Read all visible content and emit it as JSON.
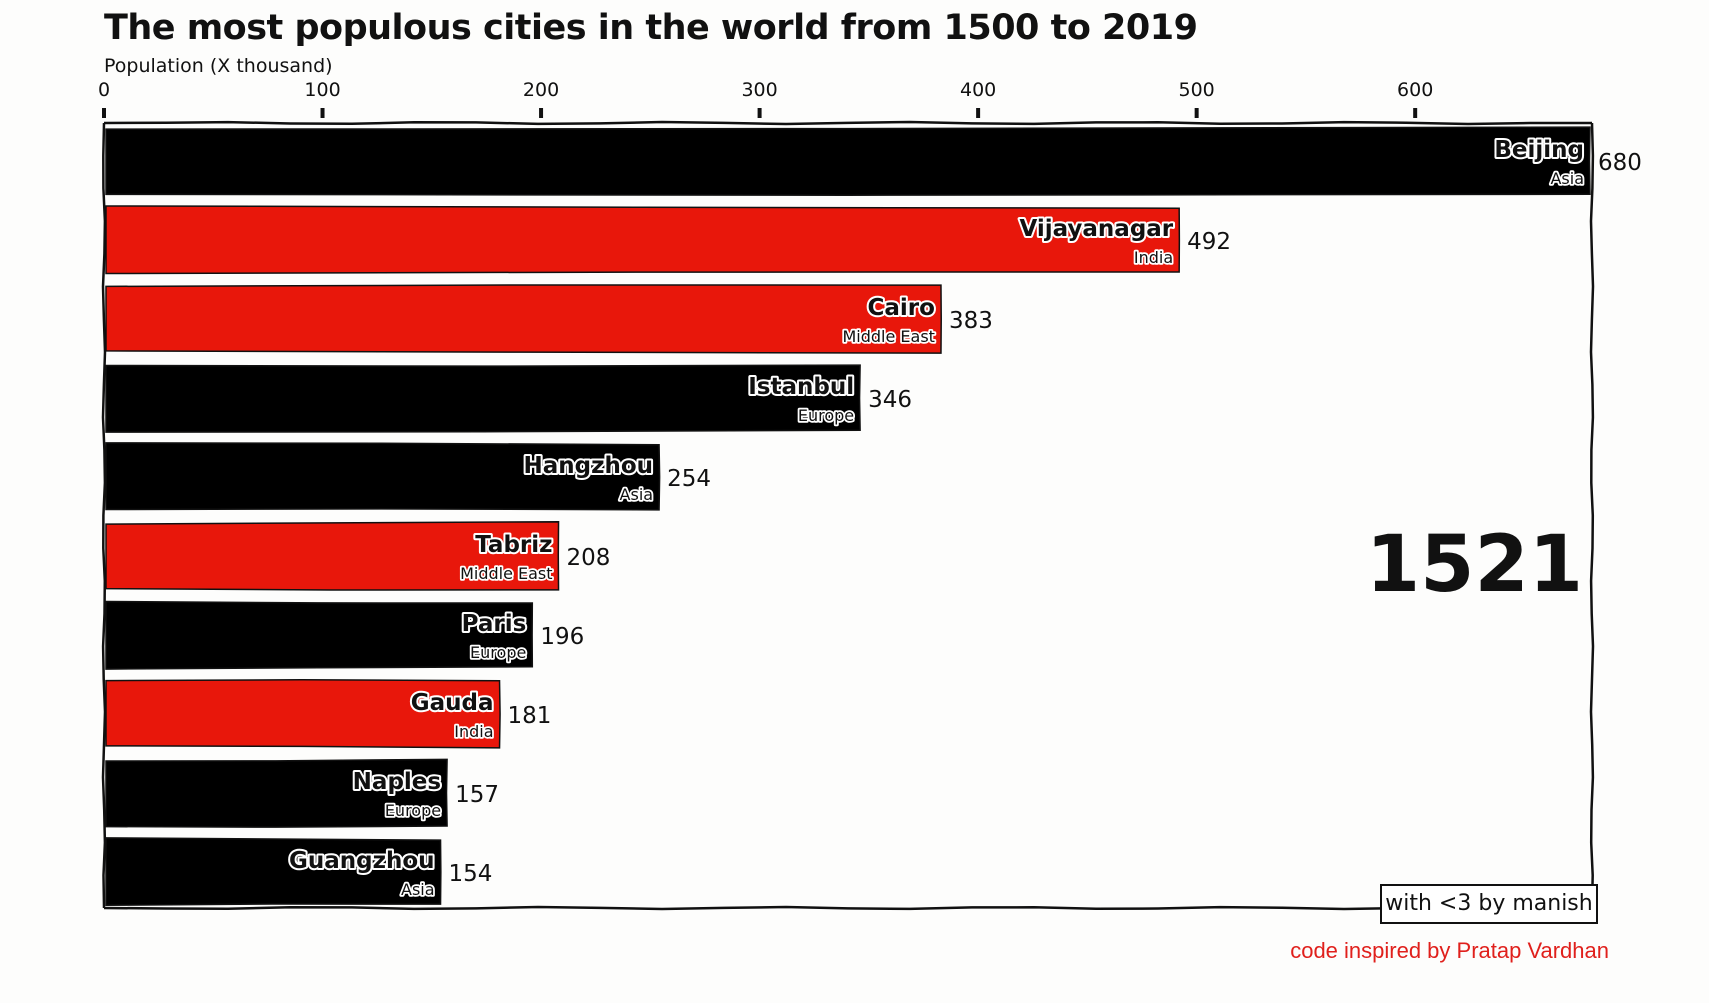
{
  "title": "The most populous cities in the world from 1500 to 2019",
  "watermark": "with <3 by manish",
  "credit": "code inspired by Pratap Vardhan",
  "colors": {
    "Asia": "#000000",
    "Europe": "#000000",
    "India": "#e8170b",
    "Middle East": "#e8170b",
    "frame": "#111111",
    "credit": "#e0201c"
  },
  "chart_data": {
    "type": "bar",
    "orientation": "horizontal",
    "xlabel": "Population (X thousand)",
    "xlim": [
      0,
      680
    ],
    "xticks": [
      0,
      100,
      200,
      300,
      400,
      500,
      600
    ],
    "year": "1521",
    "categories": [
      "Beijing",
      "Vijayanagar",
      "Cairo",
      "Istanbul",
      "Hangzhou",
      "Tabriz",
      "Paris",
      "Gauda",
      "Naples",
      "Guangzhou"
    ],
    "groups": [
      "Asia",
      "India",
      "Middle East",
      "Europe",
      "Asia",
      "Middle East",
      "Europe",
      "India",
      "Europe",
      "Asia"
    ],
    "values": [
      680,
      492,
      383,
      346,
      254,
      208,
      196,
      181,
      157,
      154
    ],
    "value_labels": [
      "680",
      "492",
      "383",
      "346",
      "254",
      "208",
      "196",
      "181",
      "157",
      "154"
    ],
    "grid": false
  }
}
